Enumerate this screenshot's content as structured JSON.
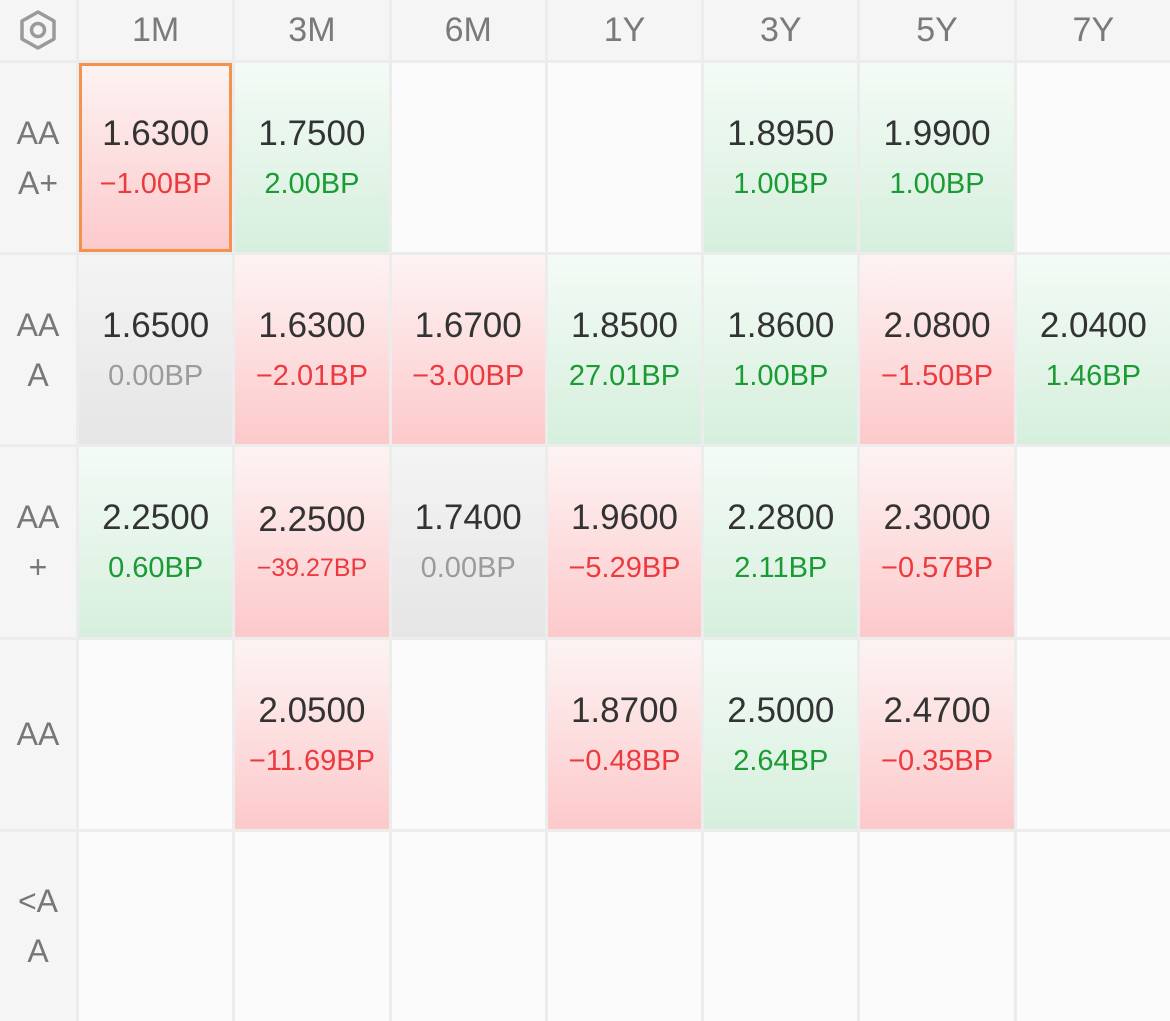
{
  "columns": [
    "1M",
    "3M",
    "6M",
    "1Y",
    "3Y",
    "5Y",
    "7Y"
  ],
  "rows": [
    {
      "label": "AAA+",
      "cells": [
        {
          "value": "1.6300",
          "change": "−1.00BP",
          "trend": "down",
          "selected": true
        },
        {
          "value": "1.7500",
          "change": "2.00BP",
          "trend": "up"
        },
        null,
        null,
        {
          "value": "1.8950",
          "change": "1.00BP",
          "trend": "up"
        },
        {
          "value": "1.9900",
          "change": "1.00BP",
          "trend": "up"
        },
        null
      ]
    },
    {
      "label": "AAA",
      "cells": [
        {
          "value": "1.6500",
          "change": "0.00BP",
          "trend": "flat"
        },
        {
          "value": "1.6300",
          "change": "−2.01BP",
          "trend": "down"
        },
        {
          "value": "1.6700",
          "change": "−3.00BP",
          "trend": "down"
        },
        {
          "value": "1.8500",
          "change": "27.01BP",
          "trend": "up"
        },
        {
          "value": "1.8600",
          "change": "1.00BP",
          "trend": "up"
        },
        {
          "value": "2.0800",
          "change": "−1.50BP",
          "trend": "down"
        },
        {
          "value": "2.0400",
          "change": "1.46BP",
          "trend": "up"
        }
      ]
    },
    {
      "label": "AA+",
      "cells": [
        {
          "value": "2.2500",
          "change": "0.60BP",
          "trend": "up"
        },
        {
          "value": "2.2500",
          "change": "−39.27BP",
          "trend": "down",
          "small": true
        },
        {
          "value": "1.7400",
          "change": "0.00BP",
          "trend": "flat"
        },
        {
          "value": "1.9600",
          "change": "−5.29BP",
          "trend": "down"
        },
        {
          "value": "2.2800",
          "change": "2.11BP",
          "trend": "up"
        },
        {
          "value": "2.3000",
          "change": "−0.57BP",
          "trend": "down"
        },
        null
      ]
    },
    {
      "label": "AA",
      "cells": [
        null,
        {
          "value": "2.0500",
          "change": "−11.69BP",
          "trend": "down"
        },
        null,
        {
          "value": "1.8700",
          "change": "−0.48BP",
          "trend": "down"
        },
        {
          "value": "2.5000",
          "change": "2.64BP",
          "trend": "up"
        },
        {
          "value": "2.4700",
          "change": "−0.35BP",
          "trend": "down"
        },
        null
      ]
    },
    {
      "label": "<AA",
      "cells": [
        null,
        null,
        null,
        null,
        null,
        null,
        null
      ]
    }
  ],
  "colors": {
    "up": "#1a9b33",
    "down": "#ec3a3e",
    "flat": "#9b9b9b",
    "selected_border": "#f2924c"
  },
  "icons": {
    "corner": "settings-hexagon-icon"
  }
}
